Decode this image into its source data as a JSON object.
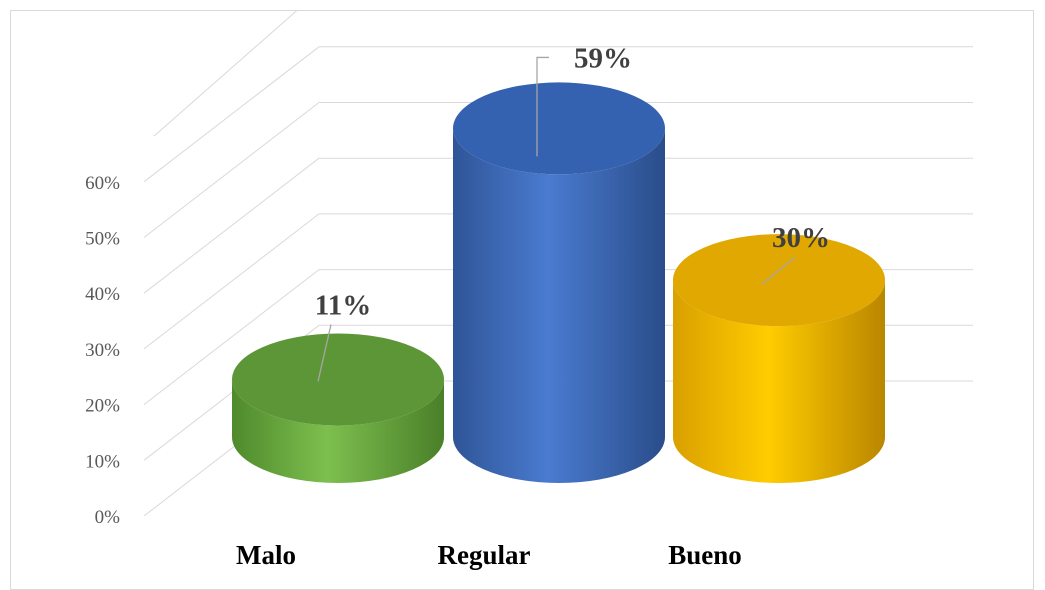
{
  "chart_data": {
    "type": "bar",
    "style": "3d-cylinder",
    "categories": [
      "Malo",
      "Regular",
      "Bueno"
    ],
    "values": [
      11,
      59,
      30
    ],
    "value_suffix": "%",
    "data_labels": [
      "11%",
      "59%",
      "30%"
    ],
    "y_ticks": [
      "0%",
      "10%",
      "20%",
      "30%",
      "40%",
      "50%",
      "60%"
    ],
    "ylim": [
      0,
      60
    ],
    "grid": true,
    "legend": "none",
    "colors": {
      "Malo": "#70ad47",
      "Regular": "#4472c4",
      "Bueno": "#ffc000"
    }
  }
}
